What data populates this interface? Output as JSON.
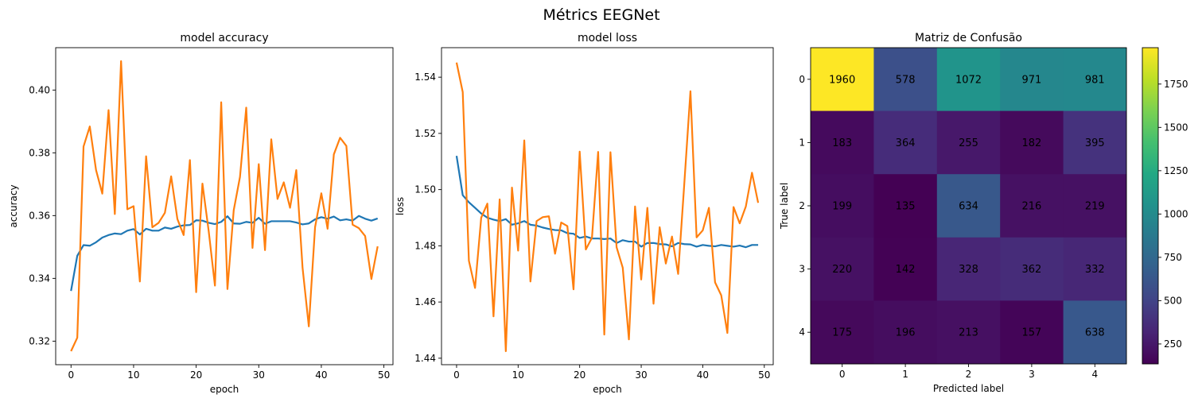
{
  "figure": {
    "suptitle": "Métrics EEGNet"
  },
  "chart_data": [
    {
      "type": "line",
      "title": "model accuracy",
      "xlabel": "epoch",
      "ylabel": "accuracy",
      "xlim": [
        -2.45,
        51.45
      ],
      "ylim": [
        0.3125,
        0.4135
      ],
      "xticks": [
        0,
        10,
        20,
        30,
        40,
        50
      ],
      "yticks": [
        0.32,
        0.34,
        0.36,
        0.38,
        0.4
      ],
      "ytick_labels": [
        "0.32",
        "0.34",
        "0.36",
        "0.38",
        "0.40"
      ],
      "grid": false,
      "x": [
        0,
        1,
        2,
        3,
        4,
        5,
        6,
        7,
        8,
        9,
        10,
        11,
        12,
        13,
        14,
        15,
        16,
        17,
        18,
        19,
        20,
        21,
        22,
        23,
        24,
        25,
        26,
        27,
        28,
        29,
        30,
        31,
        32,
        33,
        34,
        35,
        36,
        37,
        38,
        39,
        40,
        41,
        42,
        43,
        44,
        45,
        46,
        47,
        48,
        49
      ],
      "series": [
        {
          "color": "#1f77b4",
          "values": [
            0.336,
            0.3472,
            0.3506,
            0.3504,
            0.3515,
            0.353,
            0.3538,
            0.3543,
            0.3541,
            0.3552,
            0.3557,
            0.354,
            0.3558,
            0.3552,
            0.3552,
            0.3562,
            0.3558,
            0.3565,
            0.3569,
            0.357,
            0.3585,
            0.3584,
            0.3577,
            0.3573,
            0.358,
            0.3598,
            0.3575,
            0.3574,
            0.358,
            0.3577,
            0.3593,
            0.3574,
            0.3582,
            0.3582,
            0.3582,
            0.3582,
            0.3578,
            0.3572,
            0.3575,
            0.3588,
            0.3595,
            0.359,
            0.3597,
            0.3585,
            0.3588,
            0.3584,
            0.3599,
            0.359,
            0.3584,
            0.3591
          ]
        },
        {
          "color": "#ff7f0e",
          "values": [
            0.3168,
            0.3211,
            0.382,
            0.3884,
            0.3745,
            0.367,
            0.3936,
            0.3605,
            0.4092,
            0.362,
            0.363,
            0.339,
            0.3789,
            0.3563,
            0.3577,
            0.3609,
            0.3725,
            0.3589,
            0.3538,
            0.3777,
            0.3356,
            0.3702,
            0.3551,
            0.3377,
            0.3961,
            0.3366,
            0.3617,
            0.3723,
            0.3944,
            0.3497,
            0.3764,
            0.349,
            0.3843,
            0.3653,
            0.3706,
            0.3625,
            0.3745,
            0.3434,
            0.3247,
            0.3563,
            0.3671,
            0.3558,
            0.3795,
            0.3848,
            0.3822,
            0.3571,
            0.356,
            0.3535,
            0.3398,
            0.3502
          ]
        }
      ]
    },
    {
      "type": "line",
      "title": "model loss",
      "xlabel": "epoch",
      "ylabel": "loss",
      "xlim": [
        -2.45,
        51.45
      ],
      "ylim": [
        1.4377,
        1.5505
      ],
      "xticks": [
        0,
        10,
        20,
        30,
        40,
        50
      ],
      "yticks": [
        1.44,
        1.46,
        1.48,
        1.5,
        1.52,
        1.54
      ],
      "ytick_labels": [
        "1.44",
        "1.46",
        "1.48",
        "1.50",
        "1.52",
        "1.54"
      ],
      "grid": false,
      "x": [
        0,
        1,
        2,
        3,
        4,
        5,
        6,
        7,
        8,
        9,
        10,
        11,
        12,
        13,
        14,
        15,
        16,
        17,
        18,
        19,
        20,
        21,
        22,
        23,
        24,
        25,
        26,
        27,
        28,
        29,
        30,
        31,
        32,
        33,
        34,
        35,
        36,
        37,
        38,
        39,
        40,
        41,
        42,
        43,
        44,
        45,
        46,
        47,
        48,
        49
      ],
      "series": [
        {
          "color": "#1f77b4",
          "values": [
            1.512,
            1.498,
            1.4955,
            1.4935,
            1.4915,
            1.49,
            1.4893,
            1.4888,
            1.4895,
            1.4875,
            1.488,
            1.4888,
            1.4875,
            1.4872,
            1.4865,
            1.486,
            1.4856,
            1.4855,
            1.4845,
            1.4843,
            1.4828,
            1.4833,
            1.4826,
            1.4826,
            1.4824,
            1.4826,
            1.481,
            1.482,
            1.4815,
            1.4815,
            1.4797,
            1.481,
            1.481,
            1.4806,
            1.4805,
            1.4798,
            1.481,
            1.4806,
            1.4805,
            1.4797,
            1.4803,
            1.48,
            1.4798,
            1.4803,
            1.48,
            1.4797,
            1.4801,
            1.4795,
            1.4803,
            1.4803
          ]
        },
        {
          "color": "#ff7f0e",
          "values": [
            1.5452,
            1.5347,
            1.4747,
            1.465,
            1.49,
            1.495,
            1.4549,
            1.4965,
            1.4425,
            1.5007,
            1.4783,
            1.5175,
            1.4673,
            1.4888,
            1.4902,
            1.4905,
            1.4772,
            1.4883,
            1.487,
            1.4645,
            1.5135,
            1.4787,
            1.4829,
            1.5134,
            1.4484,
            1.5133,
            1.4795,
            1.4722,
            1.4467,
            1.494,
            1.468,
            1.4935,
            1.4594,
            1.4866,
            1.4737,
            1.4833,
            1.47,
            1.5021,
            1.535,
            1.483,
            1.4855,
            1.4935,
            1.467,
            1.4624,
            1.449,
            1.4938,
            1.488,
            1.494,
            1.506,
            1.4953
          ]
        }
      ]
    },
    {
      "type": "heatmap",
      "title": "Matriz de Confusão",
      "xlabel": "Predicted label",
      "ylabel": "True label",
      "x_categories": [
        "0",
        "1",
        "2",
        "3",
        "4"
      ],
      "y_categories": [
        "0",
        "1",
        "2",
        "3",
        "4"
      ],
      "colormap": "viridis",
      "vmin": 135,
      "vmax": 1960,
      "colorbar_ticks": [
        250,
        500,
        750,
        1000,
        1250,
        1500,
        1750
      ],
      "text_color_light": "#fde725",
      "text_color_dark": "#440154",
      "values": [
        [
          1960,
          578,
          1072,
          971,
          981
        ],
        [
          183,
          364,
          255,
          182,
          395
        ],
        [
          199,
          135,
          634,
          216,
          219
        ],
        [
          220,
          142,
          328,
          362,
          332
        ],
        [
          175,
          196,
          213,
          157,
          638
        ]
      ]
    }
  ]
}
